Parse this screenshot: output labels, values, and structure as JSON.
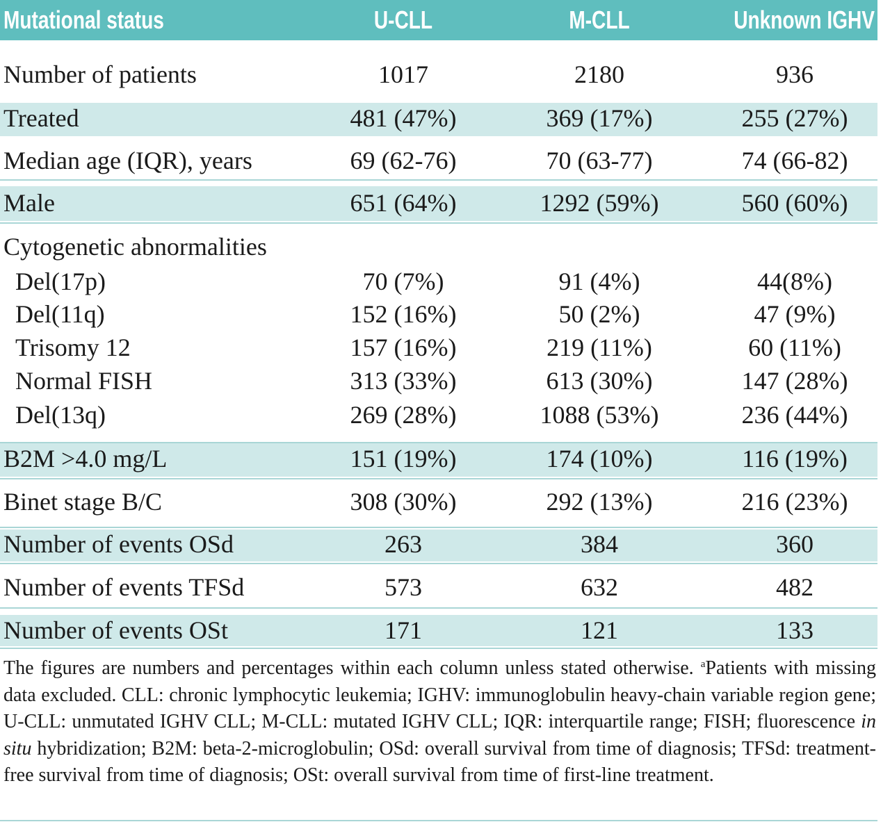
{
  "table": {
    "header": [
      "Mutational status",
      "U-CLL",
      "M-CLL",
      "Unknown IGHV"
    ],
    "rows": [
      [
        "Number of patients",
        "1017",
        "2180",
        "936"
      ],
      [
        "Treated",
        "481 (47%)",
        "369 (17%)",
        "255 (27%)"
      ],
      [
        "Median age (IQR), years",
        "69 (62-76)",
        "70 (63-77)",
        "74 (66-82)"
      ],
      [
        "Male",
        "651 (64%)",
        "1292 (59%)",
        "560 (60%)"
      ],
      [
        "Cytogenetic abnormalities"
      ],
      [
        "Del(17p)",
        "70 (7%)",
        "91 (4%)",
        "44(8%)"
      ],
      [
        "Del(11q)",
        "152 (16%)",
        "50 (2%)",
        "47 (9%)"
      ],
      [
        "Trisomy 12",
        "157 (16%)",
        "219 (11%)",
        "60 (11%)"
      ],
      [
        "Normal FISH",
        "313 (33%)",
        "613 (30%)",
        "147 (28%)"
      ],
      [
        "Del(13q)",
        "269 (28%)",
        "1088 (53%)",
        "236 (44%)"
      ],
      [
        "B2M >4.0 mg/L",
        "151 (19%)",
        "174 (10%)",
        "116 (19%)"
      ],
      [
        "Binet stage B/C",
        "308 (30%)",
        "292 (13%)",
        "216 (23%)"
      ],
      [
        "Number of events OSd",
        "263",
        "384",
        "360"
      ],
      [
        "Number of events TFSd",
        "573",
        "632",
        "482"
      ],
      [
        "Number of events OSt",
        "171",
        "121",
        "133"
      ]
    ]
  },
  "footnote": [
    "The figures are numbers and percentages within each column unless stated otherwise. ",
    "a",
    "Patients with missing data excluded. CLL: chronic lymphocytic leukemia; IGHV: immunoglobulin heavy-chain variable region gene; U-CLL: unmutated IGHV CLL; M-CLL: mutated IGHV CLL; IQR: interquartile range; FISH; fluorescence ",
    "in situ",
    " hybridization; B2M: beta-2-microglobulin; OSd: overall survival from time of diagnosis; TFSd: treatment-free survival from time of diagnosis; OSt: overall survival from time of first-line treatment."
  ]
}
